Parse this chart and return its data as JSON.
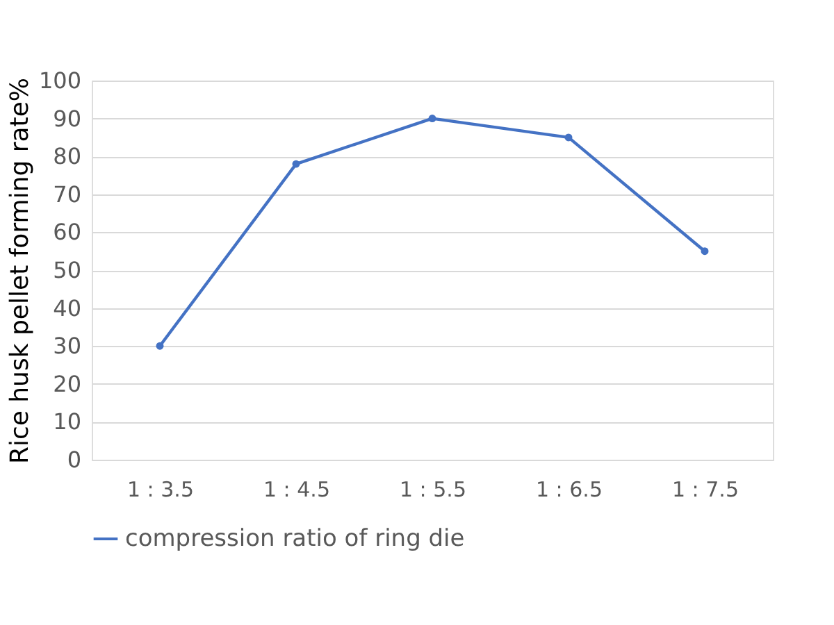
{
  "chart_data": {
    "type": "line",
    "ylabel": "Rice husk pellet forming rate%",
    "categories": [
      "1 : 3.5",
      "1 : 4.5",
      "1 : 5.5",
      "1 : 6.5",
      "1 : 7.5"
    ],
    "series": [
      {
        "name": "compression ratio of ring die",
        "color": "#4472c4",
        "values": [
          30,
          78,
          90,
          85,
          55
        ]
      }
    ],
    "ylim": [
      0,
      100
    ],
    "yticks": [
      0,
      10,
      20,
      30,
      40,
      50,
      60,
      70,
      80,
      90,
      100
    ],
    "grid": "y",
    "legend": "bottom",
    "marker": "circle",
    "line_style": "solid"
  }
}
